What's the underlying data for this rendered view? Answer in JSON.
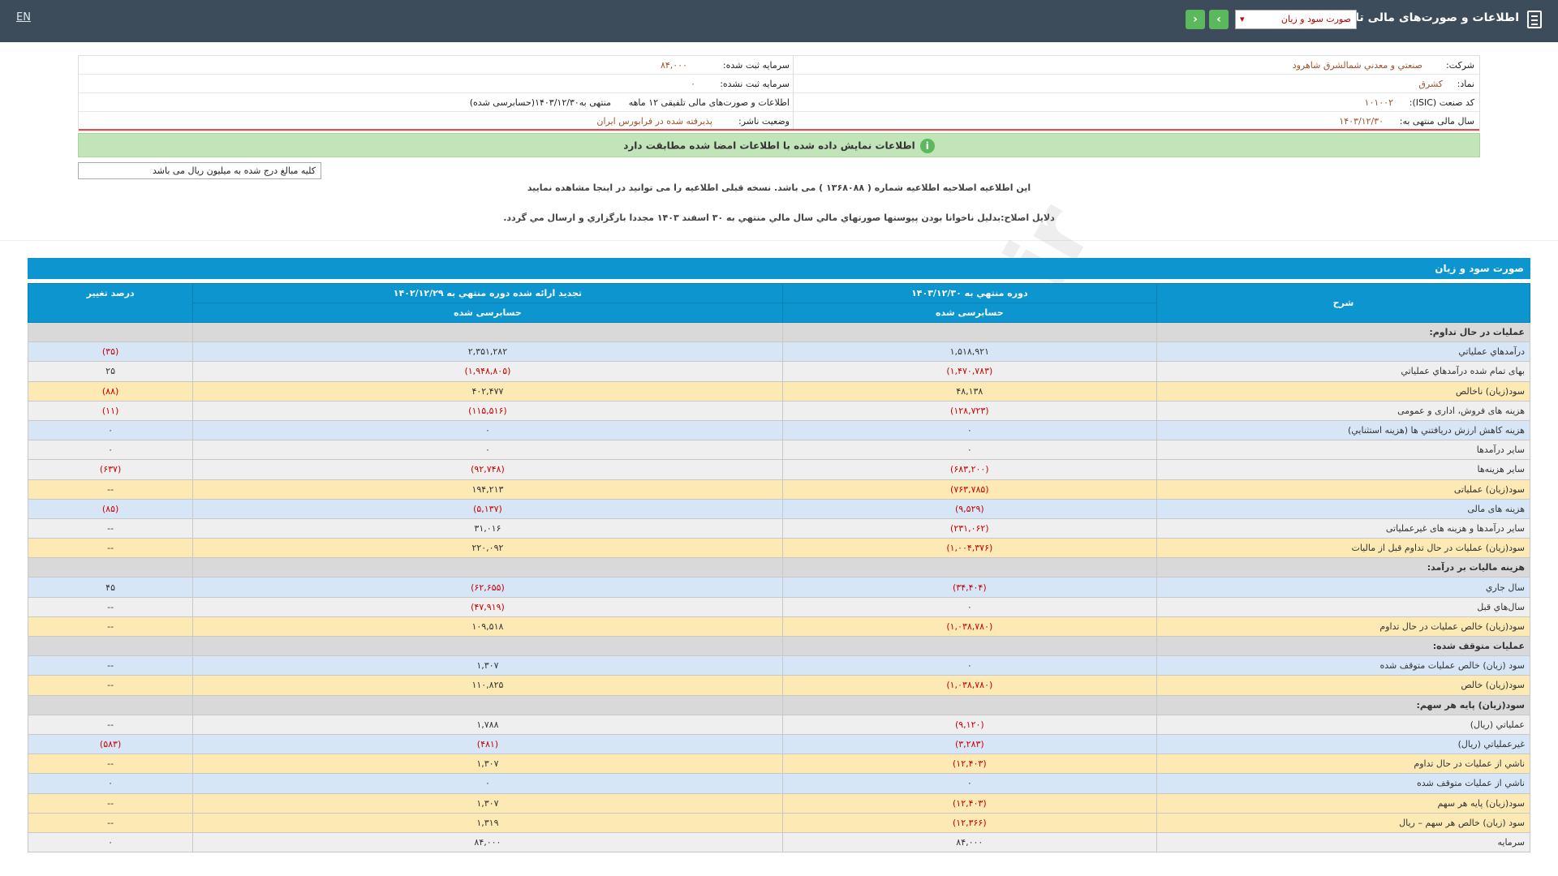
{
  "topbar": {
    "lang": "EN",
    "title": "اطلاعات و صورت‌های مالی تلفیقی",
    "select_value": "صورت سود و زیان"
  },
  "info": {
    "company_label": "شرکت:",
    "company": "صنعتي و معدني شمالشرق شاهرود",
    "capital_label": "سرمایه ثبت شده:",
    "capital": "۸۴,۰۰۰",
    "symbol_label": "نماد:",
    "symbol": "کشرق",
    "unreg_label": "سرمایه ثبت نشده:",
    "unreg": "۰",
    "isic_label": "کد صنعت (ISIC):",
    "isic": "۱۰۱۰۰۲",
    "report_label": "اطلاعات و صورت‌های مالی تلفیقی ۱۲ ماهه",
    "report_value": "منتهی به۱۴۰۳/۱۲/۳۰(حسابرسی شده)",
    "fy_label": "سال مالی منتهی به:",
    "fy": "۱۴۰۳/۱۲/۳۰",
    "status_label": "وضعیت ناشر:",
    "status": "پذیرفته شده در فرابورس ایران"
  },
  "banner": "اطلاعات نمایش داده شده با اطلاعات امضا شده مطابقت دارد",
  "unit_note": "کلیه مبالغ درج شده به میلیون ریال می باشد",
  "note1": "این اطلاعیه اصلاحیه اطلاعیه شماره ( ۱۳۶۸۰۸۸ ) می باشد. نسخه قبلی اطلاعیه را می توانید در اینجا مشاهده نمایید",
  "note2": "دلایل اصلاح:بدلیل ناخوانا بودن پیوستها صورتهاي مالي سال مالي منتهي به ۳۰ اسفند ۱۴۰۳ مجددا بارگزاري و ارسال مي گردد.",
  "section_title": "صورت سود و زیان",
  "headers": {
    "desc": "شرح",
    "cur": "دوره منتهي به ۱۴۰۳/۱۲/۳۰",
    "prev": "تجدید ارائه شده دوره منتهي به ۱۴۰۲/۱۲/۲۹",
    "pct": "درصد تغییر",
    "cur_sub": "حسابرسی شده",
    "prev_sub": "حسابرسی شده"
  },
  "rows": [
    {
      "t": "section",
      "desc": "عملیات در حال تداوم:",
      "cur": "",
      "prev": "",
      "pct": ""
    },
    {
      "t": "blue",
      "desc": "درآمدهاي عملياتي",
      "cur": "۱,۵۱۸,۹۲۱",
      "prev": "۲,۳۵۱,۲۸۲",
      "pct": "(۳۵)"
    },
    {
      "t": "gray",
      "desc": "بهاى تمام شده درآمدهاي عملياتي",
      "cur": "(۱,۴۷۰,۷۸۳)",
      "prev": "(۱,۹۴۸,۸۰۵)",
      "pct": "۲۵"
    },
    {
      "t": "yellow",
      "desc": "سود(زيان) ناخالص",
      "cur": "۴۸,۱۳۸",
      "prev": "۴۰۲,۴۷۷",
      "pct": "(۸۸)"
    },
    {
      "t": "gray",
      "desc": "هزينه هاى فروش، ادارى و عمومى",
      "cur": "(۱۲۸,۷۲۳)",
      "prev": "(۱۱۵,۵۱۶)",
      "pct": "(۱۱)"
    },
    {
      "t": "blue",
      "desc": "هزينه کاهش ارزش دريافتني ها (هزينه استثنايي)",
      "cur": "۰",
      "prev": "۰",
      "pct": "۰"
    },
    {
      "t": "gray",
      "desc": "ساير درآمدها",
      "cur": "۰",
      "prev": "۰",
      "pct": "۰"
    },
    {
      "t": "gray",
      "desc": "سایر هزینه‌ها",
      "cur": "(۶۸۳,۲۰۰)",
      "prev": "(۹۲,۷۴۸)",
      "pct": "(۶۳۷)"
    },
    {
      "t": "yellow",
      "desc": "سود(زيان) عملياتى",
      "cur": "(۷۶۳,۷۸۵)",
      "prev": "۱۹۴,۲۱۳",
      "pct": "--"
    },
    {
      "t": "blue",
      "desc": "هزينه هاى مالى",
      "cur": "(۹,۵۲۹)",
      "prev": "(۵,۱۳۷)",
      "pct": "(۸۵)"
    },
    {
      "t": "gray",
      "desc": "ساير درآمدها و هزينه هاى غيرعملياتى",
      "cur": "(۲۳۱,۰۶۲)",
      "prev": "۳۱,۰۱۶",
      "pct": "--"
    },
    {
      "t": "yellow",
      "desc": "سود(زيان) عمليات در حال تداوم قبل از ماليات",
      "cur": "(۱,۰۰۴,۳۷۶)",
      "prev": "۲۲۰,۰۹۲",
      "pct": "--"
    },
    {
      "t": "section",
      "desc": "هزينه ماليات بر درآمد:",
      "cur": "",
      "prev": "",
      "pct": ""
    },
    {
      "t": "blue",
      "desc": "سال جاري",
      "cur": "(۳۴,۴۰۴)",
      "prev": "(۶۲,۶۵۵)",
      "pct": "۴۵"
    },
    {
      "t": "gray",
      "desc": "سال‌هاي قبل",
      "cur": "۰",
      "prev": "(۴۷,۹۱۹)",
      "pct": "--"
    },
    {
      "t": "yellow",
      "desc": "سود(زيان) خالص عمليات در حال تداوم",
      "cur": "(۱,۰۳۸,۷۸۰)",
      "prev": "۱۰۹,۵۱۸",
      "pct": "--"
    },
    {
      "t": "section",
      "desc": "عمليات متوقف شده:",
      "cur": "",
      "prev": "",
      "pct": ""
    },
    {
      "t": "blue",
      "desc": "سود (زيان) خالص عمليات متوقف شده",
      "cur": "۰",
      "prev": "۱,۳۰۷",
      "pct": "--"
    },
    {
      "t": "yellow",
      "desc": "سود(زيان) خالص",
      "cur": "(۱,۰۳۸,۷۸۰)",
      "prev": "۱۱۰,۸۲۵",
      "pct": "--"
    },
    {
      "t": "section",
      "desc": "سود(زيان) پايه هر سهم:",
      "cur": "",
      "prev": "",
      "pct": ""
    },
    {
      "t": "gray",
      "desc": "عملياتي (ريال)",
      "cur": "(۹,۱۲۰)",
      "prev": "۱,۷۸۸",
      "pct": "--"
    },
    {
      "t": "blue",
      "desc": "غيرعملياتي (ريال)",
      "cur": "(۳,۲۸۳)",
      "prev": "(۴۸۱)",
      "pct": "(۵۸۳)"
    },
    {
      "t": "yellow",
      "desc": "ناشي از عمليات در حال تداوم",
      "cur": "(۱۲,۴۰۳)",
      "prev": "۱,۳۰۷",
      "pct": "--"
    },
    {
      "t": "blue",
      "desc": "ناشي از عمليات متوقف شده",
      "cur": "۰",
      "prev": "۰",
      "pct": "۰"
    },
    {
      "t": "yellow",
      "desc": "سود(زيان) پايه هر سهم",
      "cur": "(۱۲,۴۰۳)",
      "prev": "۱,۳۰۷",
      "pct": "--"
    },
    {
      "t": "yellow",
      "desc": "سود (زيان) خالص هر سهم – ريال",
      "cur": "(۱۲,۳۶۶)",
      "prev": "۱,۳۱۹",
      "pct": "--"
    },
    {
      "t": "gray",
      "desc": "سرمايه",
      "cur": "۸۴,۰۰۰",
      "prev": "۸۴,۰۰۰",
      "pct": "۰"
    }
  ],
  "watermark": "@Codal360_ir"
}
